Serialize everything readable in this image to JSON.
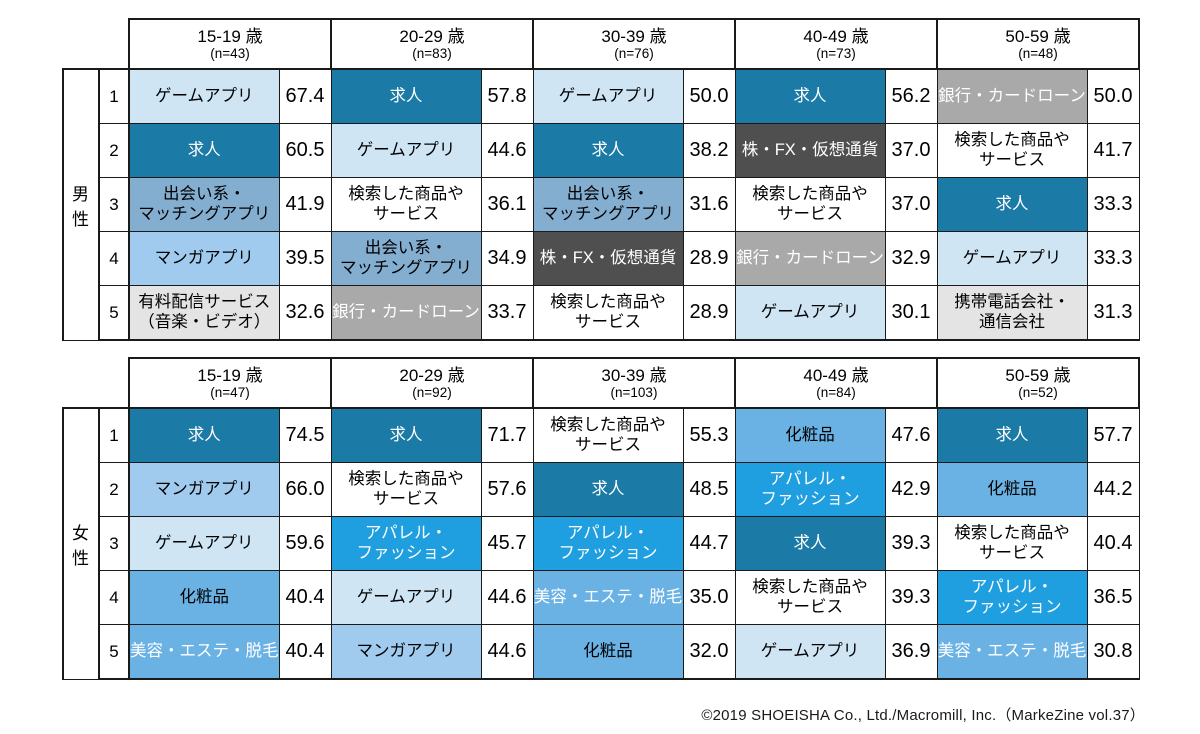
{
  "page": {
    "footer_credit": "©2019 SHOEISHA Co., Ltd./Macromill, Inc.（MarkeZine vol.37）"
  },
  "rank_numbers": [
    "1",
    "2",
    "3",
    "4",
    "5"
  ],
  "categories": {
    "game-app": {
      "label": "ゲームアプリ",
      "bg": "#cfe5f4",
      "fg": "#000000"
    },
    "jobs": {
      "label": "求人",
      "bg": "#1b7aa6",
      "fg": "#ffffff"
    },
    "dating-app": {
      "label": "出会い系・\nマッチングアプリ",
      "bg": "#84aed0",
      "fg": "#000000"
    },
    "manga-app": {
      "label": "マンガアプリ",
      "bg": "#a0cbee",
      "fg": "#000000"
    },
    "searched-products": {
      "label": "検索した商品や\nサービス",
      "bg": "#ffffff",
      "fg": "#000000"
    },
    "paid-streaming": {
      "label": "有料配信サービス\n（音楽・ビデオ）",
      "bg": "#e4e4e4",
      "fg": "#000000"
    },
    "bank-card-loan": {
      "label": "銀行・カードローン",
      "bg": "#a9a9a9",
      "fg": "#ffffff"
    },
    "stocks-fx-crypto": {
      "label": "株・FX・仮想通貨",
      "bg": "#4f4f4f",
      "fg": "#ffffff"
    },
    "mobile-carrier": {
      "label": "携帯電話会社・\n通信会社",
      "bg": "#e4e4e4",
      "fg": "#000000"
    },
    "apparel-fashion": {
      "label": "アパレル・\nファッション",
      "bg": "#1f9fdf",
      "fg": "#ffffff"
    },
    "cosmetics": {
      "label": "化粧品",
      "bg": "#6ab2e4",
      "fg": "#000000"
    },
    "beauty-esthetic": {
      "label": "美容・エステ・脱毛",
      "bg": "#6ab2e4",
      "fg": "#ffffff"
    }
  },
  "chart_data": [
    {
      "type": "table",
      "title": "男性",
      "age_groups": [
        {
          "age": "15-19 歳",
          "n": "(n=43)",
          "ranking": [
            {
              "cat": "game-app",
              "value": "67.4"
            },
            {
              "cat": "jobs",
              "value": "60.5"
            },
            {
              "cat": "dating-app",
              "value": "41.9"
            },
            {
              "cat": "manga-app",
              "value": "39.5"
            },
            {
              "cat": "paid-streaming",
              "value": "32.6"
            }
          ]
        },
        {
          "age": "20-29 歳",
          "n": "(n=83)",
          "ranking": [
            {
              "cat": "jobs",
              "value": "57.8"
            },
            {
              "cat": "game-app",
              "value": "44.6"
            },
            {
              "cat": "searched-products",
              "value": "36.1"
            },
            {
              "cat": "dating-app",
              "value": "34.9"
            },
            {
              "cat": "bank-card-loan",
              "value": "33.7"
            }
          ]
        },
        {
          "age": "30-39 歳",
          "n": "(n=76)",
          "ranking": [
            {
              "cat": "game-app",
              "value": "50.0"
            },
            {
              "cat": "jobs",
              "value": "38.2"
            },
            {
              "cat": "dating-app",
              "value": "31.6"
            },
            {
              "cat": "stocks-fx-crypto",
              "value": "28.9"
            },
            {
              "cat": "searched-products",
              "value": "28.9"
            }
          ]
        },
        {
          "age": "40-49 歳",
          "n": "(n=73)",
          "ranking": [
            {
              "cat": "jobs",
              "value": "56.2"
            },
            {
              "cat": "stocks-fx-crypto",
              "value": "37.0"
            },
            {
              "cat": "searched-products",
              "value": "37.0"
            },
            {
              "cat": "bank-card-loan",
              "value": "32.9"
            },
            {
              "cat": "game-app",
              "value": "30.1"
            }
          ]
        },
        {
          "age": "50-59 歳",
          "n": "(n=48)",
          "ranking": [
            {
              "cat": "bank-card-loan",
              "value": "50.0"
            },
            {
              "cat": "searched-products",
              "value": "41.7"
            },
            {
              "cat": "jobs",
              "value": "33.3"
            },
            {
              "cat": "game-app",
              "value": "33.3"
            },
            {
              "cat": "mobile-carrier",
              "value": "31.3"
            }
          ]
        }
      ]
    },
    {
      "type": "table",
      "title": "女性",
      "age_groups": [
        {
          "age": "15-19 歳",
          "n": "(n=47)",
          "ranking": [
            {
              "cat": "jobs",
              "value": "74.5"
            },
            {
              "cat": "manga-app",
              "value": "66.0"
            },
            {
              "cat": "game-app",
              "value": "59.6"
            },
            {
              "cat": "cosmetics",
              "value": "40.4"
            },
            {
              "cat": "beauty-esthetic",
              "value": "40.4"
            }
          ]
        },
        {
          "age": "20-29 歳",
          "n": "(n=92)",
          "ranking": [
            {
              "cat": "jobs",
              "value": "71.7"
            },
            {
              "cat": "searched-products",
              "value": "57.6"
            },
            {
              "cat": "apparel-fashion",
              "value": "45.7"
            },
            {
              "cat": "game-app",
              "value": "44.6"
            },
            {
              "cat": "manga-app",
              "value": "44.6"
            }
          ]
        },
        {
          "age": "30-39 歳",
          "n": "(n=103)",
          "ranking": [
            {
              "cat": "searched-products",
              "value": "55.3"
            },
            {
              "cat": "jobs",
              "value": "48.5"
            },
            {
              "cat": "apparel-fashion",
              "value": "44.7"
            },
            {
              "cat": "beauty-esthetic",
              "value": "35.0"
            },
            {
              "cat": "cosmetics",
              "value": "32.0"
            }
          ]
        },
        {
          "age": "40-49 歳",
          "n": "(n=84)",
          "ranking": [
            {
              "cat": "cosmetics",
              "value": "47.6"
            },
            {
              "cat": "apparel-fashion",
              "value": "42.9"
            },
            {
              "cat": "jobs",
              "value": "39.3"
            },
            {
              "cat": "searched-products",
              "value": "39.3"
            },
            {
              "cat": "game-app",
              "value": "36.9"
            }
          ]
        },
        {
          "age": "50-59 歳",
          "n": "(n=52)",
          "ranking": [
            {
              "cat": "jobs",
              "value": "57.7"
            },
            {
              "cat": "cosmetics",
              "value": "44.2"
            },
            {
              "cat": "searched-products",
              "value": "40.4"
            },
            {
              "cat": "apparel-fashion",
              "value": "36.5"
            },
            {
              "cat": "beauty-esthetic",
              "value": "30.8"
            }
          ]
        }
      ]
    }
  ]
}
